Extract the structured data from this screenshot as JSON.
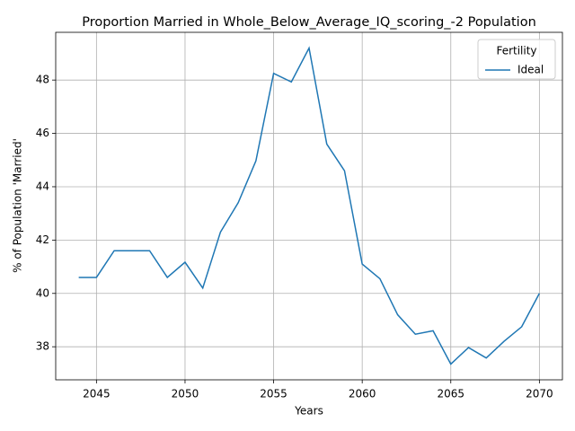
{
  "chart_data": {
    "type": "line",
    "title": "Proportion Married in Whole_Below_Average_IQ_scoring_-2 Population",
    "x_label": "Years",
    "y_label": "% of Population 'Married'",
    "x": [
      2044,
      2045,
      2046,
      2047,
      2048,
      2049,
      2050,
      2051,
      2052,
      2053,
      2054,
      2055,
      2056,
      2057,
      2058,
      2059,
      2060,
      2061,
      2062,
      2063,
      2064,
      2065,
      2066,
      2067,
      2068,
      2069,
      2070
    ],
    "series": [
      {
        "name": "Ideal",
        "color": "#1f77b4",
        "values": [
          40.6,
          40.6,
          41.6,
          41.6,
          41.6,
          40.6,
          41.17,
          40.2,
          42.3,
          43.4,
          44.97,
          48.25,
          47.93,
          49.2,
          45.6,
          44.6,
          41.1,
          40.55,
          39.2,
          38.47,
          38.6,
          37.35,
          37.97,
          37.58,
          38.2,
          38.75,
          40.0
        ]
      }
    ],
    "legend_title": "Fertility",
    "legend": "upper right",
    "xlim": [
      2042.7,
      2071.3
    ],
    "xticks": [
      2045,
      2050,
      2055,
      2060,
      2065,
      2070
    ],
    "ylim": [
      36.76,
      49.79
    ],
    "yticks": [
      38,
      40,
      42,
      44,
      46,
      48
    ],
    "grid": true
  }
}
